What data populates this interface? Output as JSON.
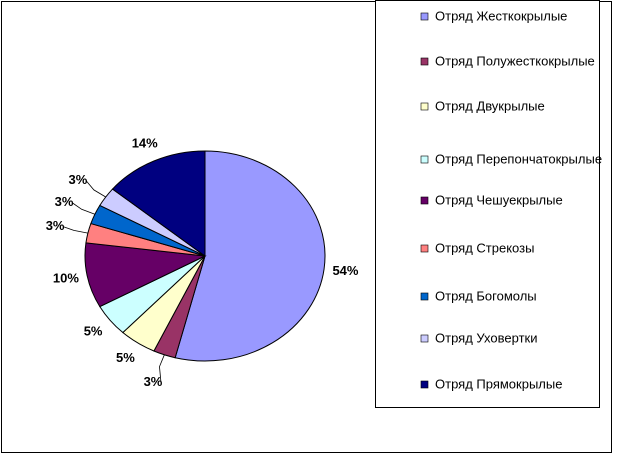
{
  "chart_data": {
    "type": "pie",
    "categories": [
      "Отряд Жесткокрылые",
      "Отряд Полужесткокрылые",
      "Отряд Двукрылые",
      "Отряд Перепончатокрылые",
      "Отряд Чешуекрылые",
      "Отряд Стрекозы",
      "Отряд Богомолы",
      "Отряд Уховертки",
      "Отряд Прямокрылые"
    ],
    "values": [
      54,
      3,
      5,
      5,
      10,
      3,
      3,
      3,
      14
    ],
    "value_labels": [
      "54%",
      "3%",
      "5%",
      "5%",
      "10%",
      "3%",
      "3%",
      "3%",
      "14%"
    ],
    "colors": [
      "#9999ff",
      "#993366",
      "#ffffcc",
      "#ccffff",
      "#660066",
      "#ff8080",
      "#0066cc",
      "#ccccff",
      "#000080"
    ],
    "legend": "right"
  }
}
